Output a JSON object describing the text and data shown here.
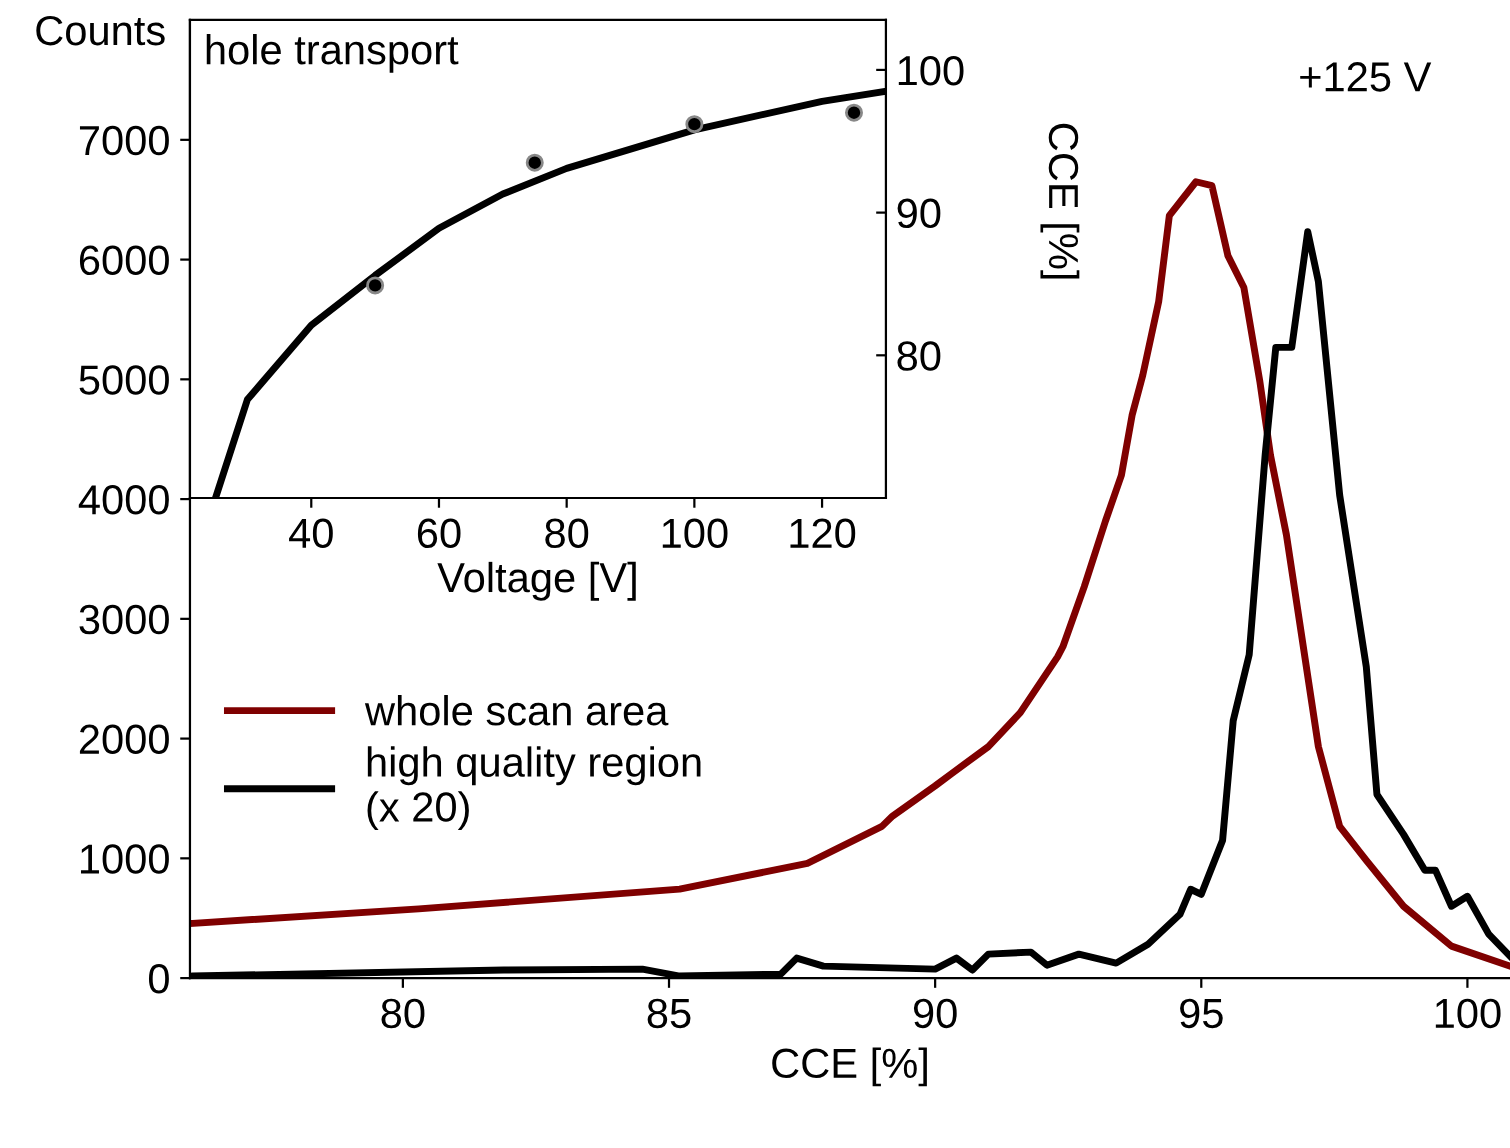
{
  "chart_data": [
    {
      "type": "line",
      "xlabel": "CCE [%]",
      "ylabel": "Counts",
      "annotations": [
        "+125 V"
      ],
      "xlim": [
        76,
        100.8
      ],
      "ylim": [
        0,
        8000
      ],
      "xticks": [
        80,
        85,
        90,
        95,
        100
      ],
      "yticks": [
        0,
        1000,
        2000,
        3000,
        4000,
        5000,
        6000,
        7000
      ],
      "legend": "left",
      "grid": false,
      "series": [
        {
          "name": "whole scan area",
          "color": "#7f0000",
          "x": [
            76.05,
            80.3,
            85.2,
            87.6,
            89.0,
            89.2,
            90.0,
            90.3,
            91.0,
            91.6,
            92.3,
            92.4,
            92.8,
            93.2,
            93.5,
            93.7,
            93.9,
            94.2,
            94.4,
            94.9,
            95.2,
            95.5,
            95.8,
            96.1,
            96.3,
            96.6,
            96.9,
            97.2,
            97.6,
            98.1,
            98.8,
            99.7,
            100.8
          ],
          "values": [
            457,
            578,
            743,
            958,
            1267,
            1353,
            1605,
            1705,
            1933,
            2217,
            2683,
            2767,
            3267,
            3817,
            4200,
            4700,
            5033,
            5650,
            6367,
            6650,
            6617,
            6033,
            5767,
            4983,
            4367,
            3700,
            2817,
            1933,
            1267,
            983,
            600,
            267,
            100
          ]
        },
        {
          "name": "high quality region\n(x 20)",
          "color": "#000000",
          "x": [
            76.05,
            81.9,
            84.5,
            85.2,
            87.1,
            87.4,
            87.9,
            90.0,
            90.4,
            90.7,
            91.0,
            91.8,
            92.1,
            92.7,
            93.4,
            94.0,
            94.6,
            94.8,
            95.0,
            95.4,
            95.6,
            95.9,
            96.2,
            96.4,
            96.7,
            97.0,
            97.2,
            97.6,
            98.1,
            98.3,
            98.8,
            99.2,
            99.4,
            99.7,
            100.0,
            100.4,
            100.8
          ],
          "values": [
            17,
            67,
            75,
            17,
            33,
            167,
            100,
            75,
            167,
            67,
            200,
            217,
            108,
            200,
            125,
            283,
            533,
            742,
            700,
            1150,
            2150,
            2700,
            4367,
            5267,
            5267,
            6233,
            5817,
            4033,
            2600,
            1533,
            1200,
            900,
            900,
            600,
            683,
            367,
            183
          ]
        }
      ]
    },
    {
      "type": "line",
      "xlabel": "Voltage [V]",
      "ylabel": "CCE [%]",
      "annotations": [
        "hole transport"
      ],
      "xlim": [
        21,
        130
      ],
      "ylim": [
        70,
        103.5
      ],
      "xticks": [
        40,
        60,
        80,
        100,
        120
      ],
      "yticks": [
        80,
        90,
        100
      ],
      "grid": false,
      "series": [
        {
          "type": "line",
          "color": "#000000",
          "x": [
            25,
            30,
            40,
            50,
            60,
            70,
            80,
            100,
            120,
            130
          ],
          "values": [
            70,
            76.9,
            82.1,
            85.6,
            88.9,
            91.3,
            93.1,
            95.8,
            97.8,
            98.5
          ]
        },
        {
          "type": "scatter",
          "marker": "circle",
          "color": "#000000",
          "x": [
            50,
            75,
            100,
            125
          ],
          "values": [
            84.9,
            93.5,
            96.2,
            97.0
          ]
        }
      ]
    }
  ]
}
